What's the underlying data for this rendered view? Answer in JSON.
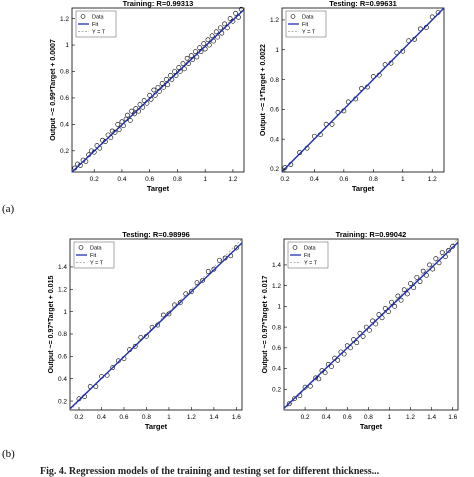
{
  "figure": {
    "label_a": "(a)",
    "label_b": "(b)",
    "caption": "Fig. 4. Regression models of the training and testing set for different thickness..."
  },
  "legend": {
    "data": "Data",
    "fit": "Fit",
    "yt": "Y = T"
  },
  "colors": {
    "fit": "#1f2fb0",
    "data": "#000000",
    "ident": "#9a9a9a"
  },
  "chart_data": [
    {
      "type": "scatter",
      "title": "Training: R=0.99313",
      "xlabel": "Target",
      "ylabel": "Output ~= 0.99*Target + 0.0007",
      "xlim": [
        0.04,
        1.28
      ],
      "ylim": [
        0.04,
        1.28
      ],
      "xticks": [
        0.2,
        0.4,
        0.6,
        0.8,
        1,
        1.2
      ],
      "yticks": [
        0.2,
        0.4,
        0.6,
        0.8,
        1,
        1.2
      ],
      "fit": {
        "slope": 0.99,
        "intercept": 0.0007
      },
      "grid": false,
      "legend_position": "top-left",
      "points": [
        [
          0.06,
          0.07
        ],
        [
          0.08,
          0.1
        ],
        [
          0.1,
          0.09
        ],
        [
          0.12,
          0.13
        ],
        [
          0.14,
          0.12
        ],
        [
          0.16,
          0.17
        ],
        [
          0.18,
          0.2
        ],
        [
          0.2,
          0.19
        ],
        [
          0.22,
          0.24
        ],
        [
          0.24,
          0.22
        ],
        [
          0.26,
          0.28
        ],
        [
          0.28,
          0.27
        ],
        [
          0.3,
          0.32
        ],
        [
          0.32,
          0.3
        ],
        [
          0.33,
          0.35
        ],
        [
          0.35,
          0.34
        ],
        [
          0.37,
          0.4
        ],
        [
          0.38,
          0.36
        ],
        [
          0.4,
          0.42
        ],
        [
          0.41,
          0.39
        ],
        [
          0.43,
          0.44
        ],
        [
          0.44,
          0.47
        ],
        [
          0.46,
          0.43
        ],
        [
          0.47,
          0.5
        ],
        [
          0.49,
          0.48
        ],
        [
          0.5,
          0.52
        ],
        [
          0.52,
          0.5
        ],
        [
          0.53,
          0.55
        ],
        [
          0.55,
          0.53
        ],
        [
          0.56,
          0.58
        ],
        [
          0.58,
          0.56
        ],
        [
          0.6,
          0.62
        ],
        [
          0.61,
          0.59
        ],
        [
          0.63,
          0.66
        ],
        [
          0.64,
          0.62
        ],
        [
          0.66,
          0.68
        ],
        [
          0.67,
          0.65
        ],
        [
          0.69,
          0.71
        ],
        [
          0.7,
          0.68
        ],
        [
          0.72,
          0.74
        ],
        [
          0.73,
          0.7
        ],
        [
          0.75,
          0.77
        ],
        [
          0.76,
          0.74
        ],
        [
          0.78,
          0.8
        ],
        [
          0.79,
          0.77
        ],
        [
          0.81,
          0.83
        ],
        [
          0.82,
          0.8
        ],
        [
          0.84,
          0.86
        ],
        [
          0.85,
          0.82
        ],
        [
          0.87,
          0.9
        ],
        [
          0.88,
          0.86
        ],
        [
          0.9,
          0.92
        ],
        [
          0.91,
          0.89
        ],
        [
          0.93,
          0.95
        ],
        [
          0.94,
          0.91
        ],
        [
          0.96,
          0.98
        ],
        [
          0.97,
          0.95
        ],
        [
          0.99,
          1.01
        ],
        [
          1.0,
          0.97
        ],
        [
          1.02,
          1.04
        ],
        [
          1.03,
          1.0
        ],
        [
          1.05,
          1.07
        ],
        [
          1.06,
          1.03
        ],
        [
          1.08,
          1.1
        ],
        [
          1.09,
          1.06
        ],
        [
          1.11,
          1.13
        ],
        [
          1.12,
          1.09
        ],
        [
          1.14,
          1.16
        ],
        [
          1.16,
          1.13
        ],
        [
          1.18,
          1.2
        ],
        [
          1.2,
          1.18
        ],
        [
          1.22,
          1.24
        ],
        [
          1.24,
          1.21
        ],
        [
          1.26,
          1.27
        ]
      ]
    },
    {
      "type": "scatter",
      "title": "Testing: R=0.99631",
      "xlabel": "Target",
      "ylabel": "Output ~= 1*Target + 0.0022",
      "xlim": [
        0.18,
        1.28
      ],
      "ylim": [
        0.18,
        1.28
      ],
      "xticks": [
        0.2,
        0.4,
        0.6,
        0.8,
        1,
        1.2
      ],
      "yticks": [
        0.2,
        0.4,
        0.6,
        0.8,
        1,
        1.2
      ],
      "fit": {
        "slope": 1.0,
        "intercept": 0.0022
      },
      "grid": false,
      "legend_position": "top-left",
      "points": [
        [
          0.2,
          0.21
        ],
        [
          0.24,
          0.23
        ],
        [
          0.3,
          0.31
        ],
        [
          0.35,
          0.34
        ],
        [
          0.4,
          0.42
        ],
        [
          0.44,
          0.43
        ],
        [
          0.48,
          0.5
        ],
        [
          0.52,
          0.5
        ],
        [
          0.56,
          0.58
        ],
        [
          0.6,
          0.59
        ],
        [
          0.63,
          0.65
        ],
        [
          0.68,
          0.67
        ],
        [
          0.72,
          0.74
        ],
        [
          0.76,
          0.75
        ],
        [
          0.8,
          0.82
        ],
        [
          0.84,
          0.83
        ],
        [
          0.88,
          0.9
        ],
        [
          0.92,
          0.91
        ],
        [
          0.96,
          0.98
        ],
        [
          1.0,
          0.99
        ],
        [
          1.04,
          1.06
        ],
        [
          1.08,
          1.07
        ],
        [
          1.12,
          1.14
        ],
        [
          1.16,
          1.15
        ],
        [
          1.2,
          1.22
        ],
        [
          1.24,
          1.25
        ]
      ]
    },
    {
      "type": "scatter",
      "title": "Testing: R=0.98996",
      "xlabel": "Target",
      "ylabel": "Output ~= 0.97*Target + 0.015",
      "xlim": [
        0.12,
        1.65
      ],
      "ylim": [
        0.12,
        1.65
      ],
      "xticks": [
        0.2,
        0.4,
        0.6,
        0.8,
        1,
        1.2,
        1.4,
        1.6
      ],
      "yticks": [
        0.2,
        0.4,
        0.6,
        0.8,
        1,
        1.2,
        1.4
      ],
      "fit": {
        "slope": 0.97,
        "intercept": 0.015
      },
      "grid": false,
      "legend_position": "top-left",
      "points": [
        [
          0.2,
          0.22
        ],
        [
          0.25,
          0.24
        ],
        [
          0.3,
          0.33
        ],
        [
          0.35,
          0.33
        ],
        [
          0.4,
          0.42
        ],
        [
          0.45,
          0.43
        ],
        [
          0.5,
          0.5
        ],
        [
          0.55,
          0.56
        ],
        [
          0.6,
          0.58
        ],
        [
          0.65,
          0.66
        ],
        [
          0.7,
          0.69
        ],
        [
          0.75,
          0.77
        ],
        [
          0.8,
          0.78
        ],
        [
          0.85,
          0.86
        ],
        [
          0.9,
          0.88
        ],
        [
          0.95,
          0.97
        ],
        [
          1.0,
          0.98
        ],
        [
          1.05,
          1.06
        ],
        [
          1.1,
          1.08
        ],
        [
          1.15,
          1.16
        ],
        [
          1.2,
          1.18
        ],
        [
          1.25,
          1.26
        ],
        [
          1.3,
          1.28
        ],
        [
          1.35,
          1.36
        ],
        [
          1.4,
          1.38
        ],
        [
          1.45,
          1.46
        ],
        [
          1.5,
          1.48
        ],
        [
          1.55,
          1.5
        ],
        [
          1.6,
          1.57
        ]
      ]
    },
    {
      "type": "scatter",
      "title": "Training: R=0.99042",
      "xlabel": "Target",
      "ylabel": "Output ~= 0.97*Target + 0.017",
      "xlim": [
        0.0,
        1.65
      ],
      "ylim": [
        0.0,
        1.65
      ],
      "xticks": [
        0.2,
        0.4,
        0.6,
        0.8,
        1,
        1.2,
        1.4,
        1.6
      ],
      "yticks": [
        0.2,
        0.4,
        0.6,
        0.8,
        1,
        1.2,
        1.4
      ],
      "fit": {
        "slope": 0.97,
        "intercept": 0.017
      },
      "grid": false,
      "legend_position": "top-left",
      "points": [
        [
          0.05,
          0.06
        ],
        [
          0.1,
          0.11
        ],
        [
          0.15,
          0.14
        ],
        [
          0.2,
          0.22
        ],
        [
          0.25,
          0.23
        ],
        [
          0.3,
          0.31
        ],
        [
          0.33,
          0.3
        ],
        [
          0.36,
          0.38
        ],
        [
          0.39,
          0.36
        ],
        [
          0.42,
          0.44
        ],
        [
          0.45,
          0.42
        ],
        [
          0.48,
          0.5
        ],
        [
          0.51,
          0.48
        ],
        [
          0.54,
          0.56
        ],
        [
          0.57,
          0.54
        ],
        [
          0.6,
          0.62
        ],
        [
          0.63,
          0.6
        ],
        [
          0.66,
          0.68
        ],
        [
          0.69,
          0.65
        ],
        [
          0.72,
          0.74
        ],
        [
          0.75,
          0.71
        ],
        [
          0.78,
          0.8
        ],
        [
          0.81,
          0.77
        ],
        [
          0.84,
          0.86
        ],
        [
          0.87,
          0.83
        ],
        [
          0.9,
          0.92
        ],
        [
          0.93,
          0.89
        ],
        [
          0.96,
          0.98
        ],
        [
          0.99,
          0.95
        ],
        [
          1.02,
          1.04
        ],
        [
          1.05,
          1.0
        ],
        [
          1.08,
          1.1
        ],
        [
          1.11,
          1.06
        ],
        [
          1.14,
          1.16
        ],
        [
          1.17,
          1.12
        ],
        [
          1.2,
          1.22
        ],
        [
          1.23,
          1.18
        ],
        [
          1.26,
          1.28
        ],
        [
          1.29,
          1.24
        ],
        [
          1.32,
          1.34
        ],
        [
          1.35,
          1.3
        ],
        [
          1.38,
          1.4
        ],
        [
          1.41,
          1.36
        ],
        [
          1.44,
          1.46
        ],
        [
          1.47,
          1.42
        ],
        [
          1.5,
          1.52
        ],
        [
          1.53,
          1.48
        ],
        [
          1.56,
          1.54
        ],
        [
          1.6,
          1.58
        ]
      ]
    }
  ]
}
